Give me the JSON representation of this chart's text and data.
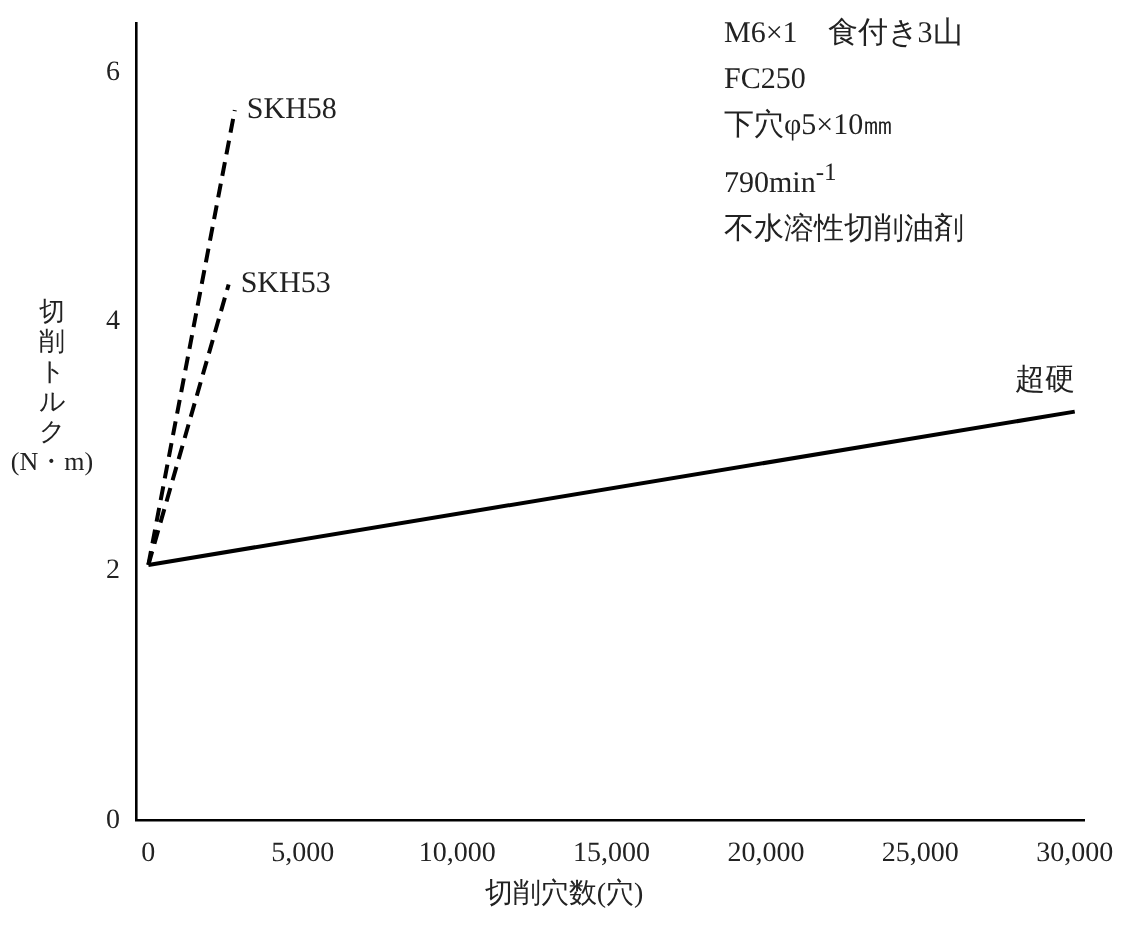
{
  "chart_data": {
    "type": "line",
    "xlabel": "切削穴数(穴)",
    "ylabel": "切削トルク(N・m)",
    "annotations": [
      "M6×1　食付き3山",
      "FC250",
      "下穴φ5×10㎜",
      "790min$^{-1}$",
      "不水溶性切削油剤"
    ],
    "xlim": [
      -400,
      30300
    ],
    "xticks": [
      0,
      {
        "value": 5000,
        "label": "5,000"
      },
      {
        "value": 10000,
        "label": "10,000"
      },
      {
        "value": 15000,
        "label": "15,000"
      },
      {
        "value": 20000,
        "label": "20,000"
      },
      {
        "value": 25000,
        "label": "25,000"
      },
      {
        "value": 30000,
        "label": "30,000"
      }
    ],
    "ylim": [
      0,
      6.4
    ],
    "yticks": [
      0,
      2,
      4,
      6
    ],
    "grid": false,
    "legend": false,
    "marker": "none",
    "series": [
      {
        "name": "SKH58",
        "color": "#000000",
        "line_style": "dashed",
        "x": [
          0,
          2800
        ],
        "values": [
          2.05,
          5.7
        ]
      },
      {
        "name": "SKH53",
        "color": "#000000",
        "line_style": "dashed",
        "x": [
          0,
          2600
        ],
        "values": [
          2.05,
          4.3
        ]
      },
      {
        "name": "超硬",
        "color": "#000000",
        "line_style": "solid",
        "x": [
          0,
          30000
        ],
        "values": [
          2.05,
          3.28
        ]
      }
    ]
  }
}
